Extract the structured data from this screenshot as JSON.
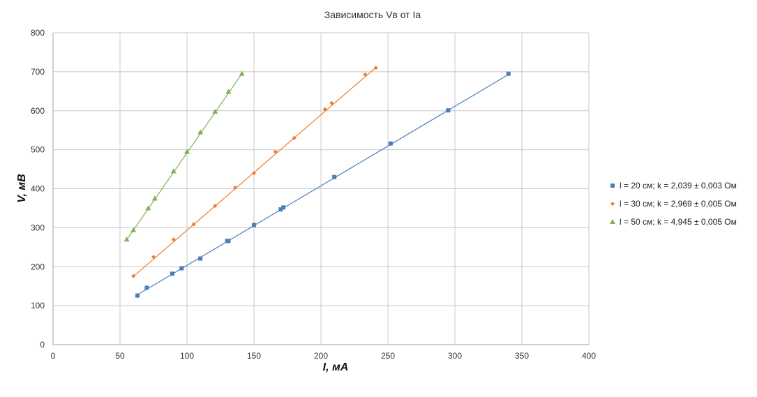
{
  "chart_data": {
    "type": "scatter",
    "title": "Зависимость  Vв от Iа",
    "xlabel": "I, мА",
    "ylabel": "V, мВ",
    "xlim": [
      0,
      400
    ],
    "ylim": [
      0,
      800
    ],
    "xticks": [
      0,
      50,
      100,
      150,
      200,
      250,
      300,
      350,
      400
    ],
    "yticks": [
      0,
      100,
      200,
      300,
      400,
      500,
      600,
      700,
      800
    ],
    "grid": true,
    "legend_position": "right",
    "series": [
      {
        "name": "l = 20 см; k = 2,039 ± 0,003 Ом",
        "color": "#4a7ebb",
        "marker": "square",
        "x": [
          63,
          70,
          89,
          96,
          110,
          130,
          131,
          150,
          170,
          172,
          210,
          252,
          295,
          340
        ],
        "y": [
          126,
          146,
          182,
          196,
          221,
          266,
          266,
          307,
          347,
          352,
          430,
          516,
          601,
          695
        ],
        "fit": [
          [
            63,
            128
          ],
          [
            340,
            693
          ]
        ]
      },
      {
        "name": "l = 30 см; k = 2,969 ± 0,005 Ом",
        "color": "#ed7d31",
        "marker": "diamond",
        "x": [
          60,
          75,
          90,
          105,
          121,
          136,
          150,
          166,
          180,
          203,
          208,
          233,
          241
        ],
        "y": [
          176,
          225,
          270,
          309,
          356,
          403,
          440,
          495,
          530,
          604,
          620,
          693,
          710
        ],
        "fit": [
          [
            60,
            175
          ],
          [
            241,
            711
          ]
        ]
      },
      {
        "name": "l = 50 см; k = 4,945 ± 0,005 Ом",
        "color": "#7fb055",
        "marker": "triangle",
        "x": [
          55,
          60,
          71,
          76,
          90,
          100,
          110,
          121,
          131,
          141
        ],
        "y": [
          270,
          294,
          350,
          375,
          445,
          495,
          545,
          598,
          649,
          695
        ],
        "fit": [
          [
            55,
            269
          ],
          [
            141,
            695
          ]
        ]
      }
    ]
  }
}
